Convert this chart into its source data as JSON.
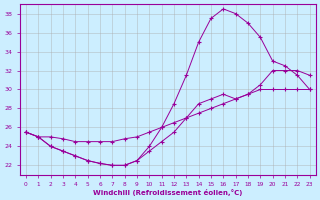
{
  "xlabel": "Windchill (Refroidissement éolien,°C)",
  "bg_color": "#cceeff",
  "line_color": "#990099",
  "grid_color": "#aaaaaa",
  "xlim": [
    -0.5,
    23.5
  ],
  "ylim": [
    21.0,
    39.0
  ],
  "yticks": [
    22,
    24,
    26,
    28,
    30,
    32,
    34,
    36,
    38
  ],
  "xticks": [
    0,
    1,
    2,
    3,
    4,
    5,
    6,
    7,
    8,
    9,
    10,
    11,
    12,
    13,
    14,
    15,
    16,
    17,
    18,
    19,
    20,
    21,
    22,
    23
  ],
  "curve1_x": [
    0,
    1,
    2,
    3,
    4,
    5,
    6,
    7,
    8,
    9,
    10,
    11,
    12,
    13,
    14,
    15,
    16,
    17,
    18,
    19,
    20,
    21,
    22,
    23
  ],
  "curve1_y": [
    25.5,
    25.0,
    25.0,
    24.8,
    24.5,
    24.5,
    24.5,
    24.5,
    24.8,
    25.0,
    25.5,
    26.0,
    26.5,
    27.0,
    27.5,
    28.0,
    28.5,
    29.0,
    29.5,
    30.0,
    30.0,
    30.0,
    30.0,
    30.0
  ],
  "curve2_x": [
    0,
    1,
    2,
    3,
    4,
    5,
    6,
    7,
    8,
    9,
    10,
    11,
    12,
    13,
    14,
    15,
    16,
    17,
    18,
    19,
    20,
    21,
    22,
    23
  ],
  "curve2_y": [
    25.5,
    25.0,
    24.0,
    23.5,
    23.0,
    22.5,
    22.2,
    22.0,
    22.0,
    22.5,
    23.5,
    24.5,
    25.5,
    27.0,
    28.5,
    29.0,
    29.5,
    29.0,
    29.5,
    30.5,
    32.0,
    32.0,
    32.0,
    31.5
  ],
  "curve3_x": [
    0,
    1,
    2,
    3,
    4,
    5,
    6,
    7,
    8,
    9,
    10,
    11,
    12,
    13,
    14,
    15,
    16,
    17,
    18,
    19,
    20,
    21,
    22,
    23
  ],
  "curve3_y": [
    25.5,
    25.0,
    24.0,
    23.5,
    23.0,
    22.5,
    22.2,
    22.0,
    22.0,
    22.5,
    24.0,
    26.0,
    28.5,
    31.5,
    35.0,
    37.5,
    38.5,
    38.0,
    37.0,
    35.5,
    33.0,
    32.5,
    31.5,
    30.0
  ]
}
